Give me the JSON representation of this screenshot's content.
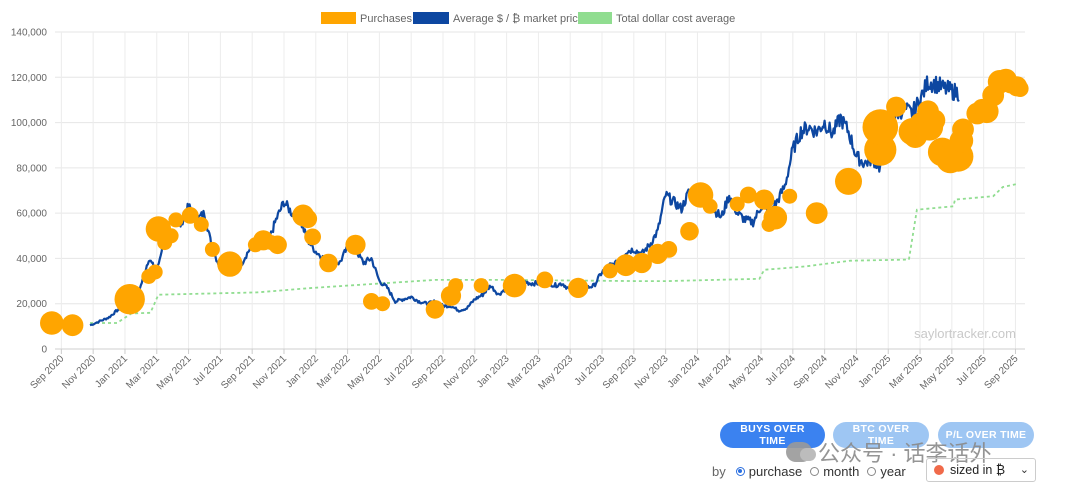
{
  "legend": [
    {
      "label": "Purchases",
      "color": "#ffa500"
    },
    {
      "label": "Average $ / ₿ market price",
      "color": "#0d47a1"
    },
    {
      "label": "Total dollar cost average",
      "color": "#90dd90"
    }
  ],
  "watermark": "saylortracker.com",
  "buttons": [
    {
      "label": "BUYS OVER TIME",
      "active": true
    },
    {
      "label": "BTC OVER TIME",
      "active": false
    },
    {
      "label": "P/L OVER TIME",
      "active": false
    }
  ],
  "controls": {
    "by_label": "by",
    "options": [
      {
        "label": "purchase",
        "selected": true
      },
      {
        "label": "month",
        "selected": false
      },
      {
        "label": "year",
        "selected": false
      }
    ],
    "select_value": "sized in ₿"
  },
  "overlay_text": "公众号 · 话李话外",
  "chart_data": {
    "type": "line",
    "y_ticks": [
      "0",
      "20,000",
      "40,000",
      "60,000",
      "80,000",
      "100,000",
      "120,000",
      "140,000"
    ],
    "ylim": [
      0,
      140000
    ],
    "x_tick_labels": [
      "Sep 2020",
      "Nov 2020",
      "Jan 2021",
      "Mar 2021",
      "May 2021",
      "Jul 2021",
      "Sep 2021",
      "Nov 2021",
      "Jan 2022",
      "Mar 2022",
      "May 2022",
      "Jul 2022",
      "Sep 2022",
      "Nov 2022",
      "Jan 2023",
      "Mar 2023",
      "May 2023",
      "Jul 2023",
      "Sep 2023",
      "Nov 2023",
      "Jan 2024",
      "Mar 2024",
      "May 2024",
      "Jul 2024",
      "Sep 2024",
      "Nov 2024",
      "Jan 2025",
      "Mar 2025",
      "May 2025",
      "Jul 2025",
      "Sep 2025"
    ],
    "x_range_months": [
      -0.4,
      60.6
    ],
    "grid": true,
    "legend_position": "top-center",
    "series": [
      {
        "name": "Average $ / ₿ market price",
        "color": "#0d47a1",
        "x_month_index": [
          1.8,
          2.5,
          3,
          3.5,
          4,
          4.5,
          5,
          5.5,
          6,
          6.5,
          7,
          7.5,
          8,
          8.5,
          9,
          9.5,
          10,
          10.5,
          11,
          11.5,
          12,
          12.5,
          13,
          13.5,
          14,
          14.5,
          15,
          15.5,
          16,
          16.5,
          17,
          17.5,
          18,
          18.5,
          19,
          19.5,
          20,
          20.5,
          21,
          21.5,
          22,
          22.5,
          23,
          23.5,
          24,
          24.5,
          25,
          25.5,
          26,
          26.5,
          27,
          27.5,
          28,
          28.5,
          29,
          29.5,
          30,
          30.5,
          31,
          31.5,
          32,
          32.5,
          33,
          33.5,
          34,
          34.5,
          35,
          35.5,
          36,
          36.5,
          37,
          37.5,
          38,
          38.5,
          39,
          39.5,
          40,
          40.5,
          41,
          41.5,
          42,
          42.5,
          43,
          43.5,
          44,
          44.5,
          45,
          45.5,
          46,
          46.5,
          47,
          47.5,
          48,
          48.5,
          49,
          49.5,
          50,
          50.5,
          51,
          51.5,
          52,
          52.5,
          53,
          53.5,
          54,
          54.5,
          55,
          55.5,
          56,
          56.5,
          57,
          57.5,
          58,
          58.5,
          59,
          59.5,
          60
        ],
        "values": [
          10500,
          12500,
          14000,
          17000,
          19000,
          22000,
          28000,
          40000,
          34000,
          50000,
          58000,
          55000,
          63000,
          57000,
          60000,
          44000,
          36000,
          35000,
          33000,
          40000,
          46000,
          48000,
          47000,
          57000,
          65000,
          60000,
          57000,
          48000,
          43000,
          40000,
          39000,
          38000,
          45000,
          44000,
          38000,
          40000,
          30000,
          27000,
          21000,
          22000,
          23000,
          21000,
          20000,
          21000,
          19000,
          19000,
          17000,
          18000,
          22000,
          24000,
          28000,
          24000,
          27000,
          28000,
          30000,
          29000,
          29000,
          30000,
          28000,
          29000,
          26000,
          27000,
          27000,
          28000,
          34000,
          37000,
          38000,
          43000,
          44000,
          42000,
          46000,
          52000,
          68000,
          65000,
          62000,
          70000,
          66000,
          64000,
          62000,
          58000,
          68000,
          60000,
          57000,
          56000,
          63000,
          60000,
          65000,
          72000,
          88000,
          96000,
          98000,
          96000,
          100000,
          95000,
          102000,
          96000,
          85000,
          82000,
          84000,
          80000,
          95000,
          104000,
          106000,
          104000,
          110000,
          118000,
          117000,
          115000,
          114000,
          113000
        ],
        "cost_average_x": [
          1.8,
          3.5,
          4.4,
          5.6,
          6.1,
          12.3,
          15.8,
          23.5,
          28,
          36.2,
          38.1,
          43.9,
          44.2,
          46.8,
          49.6,
          53.3,
          53.8,
          56.1,
          56.2,
          58.6,
          59.2,
          60.2
        ],
        "cost_average_values": [
          11500,
          11500,
          15700,
          16000,
          24000,
          25000,
          27000,
          30500,
          30500,
          30000,
          30000,
          31000,
          35000,
          36500,
          39000,
          39500,
          61500,
          63000,
          66000,
          67500,
          71500,
          73000
        ]
      }
    ],
    "purchases": {
      "name": "Purchases",
      "color": "#ffa500",
      "x_month_index": [
        -0.6,
        0.7,
        4.3,
        5.5,
        5.9,
        6.1,
        6.5,
        6.9,
        7.2,
        8.1,
        8.8,
        9.5,
        10.6,
        12.2,
        12.7,
        13.2,
        13.6,
        15.2,
        15.5,
        15.8,
        16.8,
        18.5,
        19.5,
        20.2,
        23.5,
        24.5,
        24.8,
        26.4,
        28.5,
        30.4,
        32.5,
        34.5,
        35.5,
        36.5,
        37.5,
        38.2,
        39.5,
        40.2,
        40.8,
        42.5,
        43.2,
        44.2,
        44.5,
        44.9,
        45.8,
        47.5,
        49.5,
        51.5,
        51.5,
        52.5,
        53.5,
        53.7,
        54.1,
        54.5,
        54.6,
        54.9,
        55.4,
        55.9,
        56.4,
        56.6,
        56.7,
        57.6,
        57.9,
        58.2,
        58.6,
        59.0,
        59.4,
        59.7,
        60.1,
        60.3
      ],
      "values": [
        11500,
        10500,
        22000,
        32000,
        34000,
        53000,
        47000,
        50000,
        57000,
        59000,
        55000,
        44000,
        37500,
        46000,
        48000,
        47000,
        46000,
        59000,
        57500,
        49500,
        38000,
        46000,
        21000,
        20000,
        17500,
        23500,
        28000,
        28000,
        28000,
        30500,
        27000,
        34500,
        37000,
        38000,
        42000,
        44000,
        52000,
        68000,
        63000,
        64000,
        68000,
        66000,
        55000,
        58000,
        67500,
        60000,
        74000,
        88000,
        98000,
        107000,
        96000,
        94000,
        99000,
        105000,
        98000,
        101000,
        87000,
        84000,
        85000,
        92000,
        97000,
        104000,
        106000,
        105000,
        112000,
        118000,
        119000,
        117000,
        116000,
        115000
      ],
      "sizes_btc_relative": [
        0.8,
        0.7,
        1.2,
        0.3,
        0.3,
        0.9,
        0.3,
        0.3,
        0.3,
        0.4,
        0.3,
        0.3,
        0.9,
        0.3,
        0.6,
        0.3,
        0.5,
        0.7,
        0.5,
        0.4,
        0.5,
        0.6,
        0.4,
        0.3,
        0.5,
        0.6,
        0.3,
        0.3,
        0.8,
        0.4,
        0.6,
        0.3,
        0.7,
        0.6,
        0.6,
        0.4,
        0.5,
        0.9,
        0.3,
        0.3,
        0.4,
        0.6,
        0.3,
        0.8,
        0.3,
        0.7,
        1.0,
        1.3,
        1.5,
        0.6,
        1.0,
        0.8,
        0.9,
        0.7,
        1.0,
        0.7,
        1.1,
        1.1,
        1.2,
        0.8,
        0.7,
        0.7,
        0.6,
        0.8,
        0.7,
        0.8,
        0.7,
        0.5,
        0.6,
        0.4
      ]
    }
  }
}
